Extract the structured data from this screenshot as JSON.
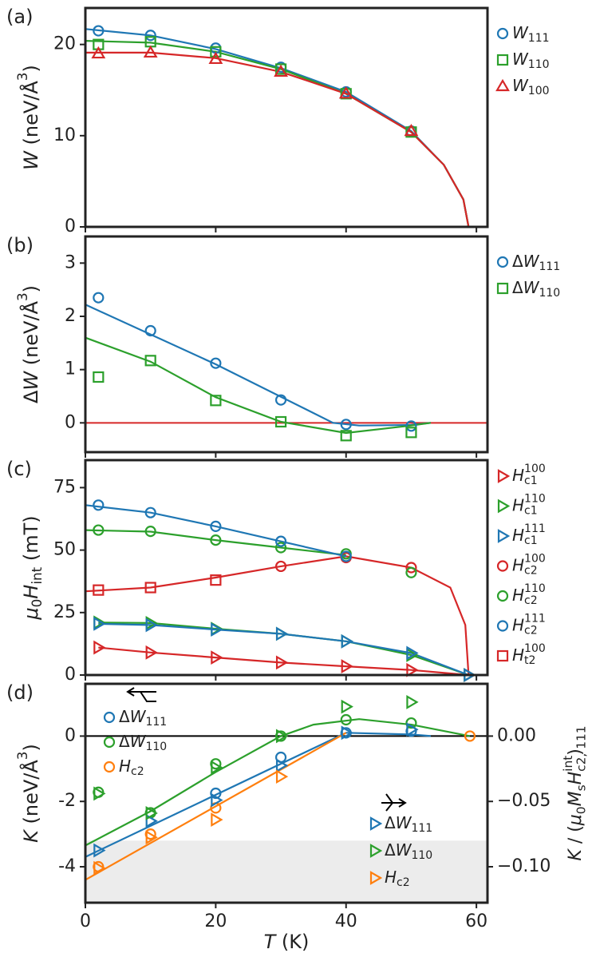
{
  "chart_data": [
    {
      "type": "scatter",
      "label": "(a)",
      "ylabel": [
        {
          "text": "W",
          "style": "i"
        },
        {
          "text": " (neV/Å",
          "style": "n"
        },
        {
          "text": "3",
          "style": "sup"
        },
        {
          "text": ")",
          "style": "n"
        }
      ],
      "xlim": [
        0,
        61.7
      ],
      "xticks": [
        0,
        20,
        40,
        60
      ],
      "ylim": [
        0,
        24
      ],
      "yticks": [
        0,
        10,
        20
      ],
      "series": [
        {
          "name": [
            {
              "text": "W",
              "style": "i"
            },
            {
              "text": "111",
              "style": "sub"
            }
          ],
          "color": "#1f77b4",
          "marker": "circle",
          "x": [
            2,
            10,
            20,
            30,
            40,
            50
          ],
          "values": [
            21.5,
            21.0,
            19.6,
            17.5,
            14.8,
            10.5
          ],
          "fit_x": [
            0,
            10,
            20,
            30,
            40,
            50,
            55,
            58,
            58.8
          ],
          "fit_values": [
            21.7,
            21.0,
            19.5,
            17.4,
            14.8,
            10.5,
            6.8,
            3.0,
            0
          ]
        },
        {
          "name": [
            {
              "text": "W",
              "style": "i"
            },
            {
              "text": "110",
              "style": "sub"
            }
          ],
          "color": "#2ca02c",
          "marker": "square",
          "x": [
            2,
            10,
            20,
            30,
            40,
            50
          ],
          "values": [
            20.0,
            20.3,
            19.2,
            17.3,
            14.6,
            10.4
          ],
          "fit_x": [
            0,
            10,
            20,
            30,
            40,
            50,
            55,
            58,
            58.8
          ],
          "fit_values": [
            20.4,
            20.2,
            19.2,
            17.3,
            14.6,
            10.4,
            6.8,
            3.0,
            0
          ]
        },
        {
          "name": [
            {
              "text": "W",
              "style": "i"
            },
            {
              "text": "100",
              "style": "sub"
            }
          ],
          "color": "#d62728",
          "marker": "triangle-up",
          "x": [
            2,
            10,
            20,
            30,
            40,
            50
          ],
          "values": [
            19.0,
            19.1,
            18.4,
            17.0,
            14.6,
            10.5
          ],
          "fit_x": [
            0,
            10,
            20,
            30,
            40,
            50,
            55,
            58,
            58.8
          ],
          "fit_values": [
            19.1,
            19.1,
            18.5,
            17.0,
            14.6,
            10.4,
            6.8,
            3.0,
            0
          ]
        }
      ]
    },
    {
      "type": "scatter",
      "label": "(b)",
      "ylabel": [
        {
          "text": "Δ",
          "style": "n"
        },
        {
          "text": "W",
          "style": "i"
        },
        {
          "text": " (neV/Å",
          "style": "n"
        },
        {
          "text": "3",
          "style": "sup"
        },
        {
          "text": ")",
          "style": "n"
        }
      ],
      "xlim": [
        0,
        61.7
      ],
      "xticks": [
        0,
        20,
        40,
        60
      ],
      "ylim": [
        -0.55,
        3.5
      ],
      "yticks": [
        0,
        1,
        2,
        3
      ],
      "hline": 0,
      "hline_color": "#d62728",
      "series": [
        {
          "name": [
            {
              "text": "Δ",
              "style": "n"
            },
            {
              "text": "W",
              "style": "i"
            },
            {
              "text": "111",
              "style": "sub"
            }
          ],
          "color": "#1f77b4",
          "marker": "circle",
          "x": [
            2,
            10,
            20,
            30,
            40,
            50
          ],
          "values": [
            2.35,
            1.73,
            1.12,
            0.43,
            -0.03,
            -0.06
          ],
          "fit_x": [
            0,
            20,
            38,
            42,
            50,
            53
          ],
          "fit_values": [
            2.22,
            1.1,
            0,
            -0.05,
            -0.04,
            0
          ]
        },
        {
          "name": [
            {
              "text": "Δ",
              "style": "n"
            },
            {
              "text": "W",
              "style": "i"
            },
            {
              "text": "110",
              "style": "sub"
            }
          ],
          "color": "#2ca02c",
          "marker": "square",
          "x": [
            2,
            10,
            20,
            30,
            40,
            50
          ],
          "values": [
            0.86,
            1.17,
            0.42,
            0.02,
            -0.24,
            -0.18
          ],
          "fit_x": [
            0,
            10,
            20,
            30,
            40,
            50,
            53
          ],
          "fit_values": [
            1.6,
            1.15,
            0.48,
            0.02,
            -0.19,
            -0.05,
            0
          ]
        }
      ]
    },
    {
      "type": "scatter",
      "label": "(c)",
      "ylabel": [
        {
          "text": "μ",
          "style": "i"
        },
        {
          "text": "0",
          "style": "sub"
        },
        {
          "text": "H",
          "style": "i"
        },
        {
          "text": "int",
          "style": "sub"
        },
        {
          "text": " (mT)",
          "style": "n"
        }
      ],
      "xlim": [
        0,
        61.7
      ],
      "xticks": [
        0,
        20,
        40,
        60
      ],
      "ylim": [
        0,
        86
      ],
      "yticks": [
        0,
        25,
        50,
        75
      ],
      "series": [
        {
          "name": [
            {
              "text": "H",
              "style": "i"
            },
            {
              "text": "c1",
              "style": "sub"
            },
            {
              "text": "100",
              "style": "osup"
            }
          ],
          "color": "#d62728",
          "marker": "triangle-right",
          "line": true,
          "x": [
            2,
            10,
            20,
            30,
            40,
            50,
            58.8
          ],
          "values": [
            11,
            9,
            7,
            5,
            3.5,
            2,
            0
          ]
        },
        {
          "name": [
            {
              "text": "H",
              "style": "i"
            },
            {
              "text": "c1",
              "style": "sub"
            },
            {
              "text": "110",
              "style": "osup"
            }
          ],
          "color": "#2ca02c",
          "marker": "triangle-right",
          "line": true,
          "x": [
            2,
            10,
            20,
            30,
            40,
            50,
            58.8
          ],
          "values": [
            21,
            20.8,
            18.5,
            16.5,
            13.5,
            8,
            0
          ]
        },
        {
          "name": [
            {
              "text": "H",
              "style": "i"
            },
            {
              "text": "c1",
              "style": "sub"
            },
            {
              "text": "111",
              "style": "osup"
            }
          ],
          "color": "#1f77b4",
          "marker": "triangle-right",
          "line": true,
          "x": [
            2,
            10,
            20,
            30,
            40,
            50,
            58.8
          ],
          "values": [
            20.5,
            20,
            18.2,
            16.5,
            13.5,
            8.8,
            0
          ]
        },
        {
          "name": [
            {
              "text": "H",
              "style": "i"
            },
            {
              "text": "c2",
              "style": "sub"
            },
            {
              "text": "100",
              "style": "osup"
            }
          ],
          "color": "#d62728",
          "marker": "circle",
          "x": [
            30,
            40,
            50
          ],
          "values": [
            43.5,
            47,
            43
          ],
          "fit_x": [
            0,
            10,
            20,
            30,
            40,
            50,
            56,
            58.3,
            58.8
          ],
          "fit_values": [
            33.5,
            35,
            39,
            43.5,
            47.5,
            43,
            35,
            20,
            0
          ]
        },
        {
          "name": [
            {
              "text": "H",
              "style": "i"
            },
            {
              "text": "c2",
              "style": "sub"
            },
            {
              "text": "110",
              "style": "osup"
            }
          ],
          "color": "#2ca02c",
          "marker": "circle",
          "x": [
            2,
            10,
            20,
            30,
            40,
            50
          ],
          "values": [
            58,
            57.5,
            54,
            51,
            48.5,
            41
          ],
          "fit_x": [
            0,
            10,
            20,
            30,
            40
          ],
          "fit_values": [
            58,
            57.4,
            54,
            51,
            48
          ]
        },
        {
          "name": [
            {
              "text": "H",
              "style": "i"
            },
            {
              "text": "c2",
              "style": "sub"
            },
            {
              "text": "111",
              "style": "osup"
            }
          ],
          "color": "#1f77b4",
          "marker": "circle",
          "x": [
            2,
            10,
            20,
            30,
            40
          ],
          "values": [
            68,
            65,
            59.5,
            53.5,
            47.5
          ],
          "fit_x": [
            0,
            10,
            20,
            30,
            40
          ],
          "fit_values": [
            68,
            65,
            59.5,
            53.5,
            47.5
          ]
        },
        {
          "name": [
            {
              "text": "H",
              "style": "i"
            },
            {
              "text": "t2",
              "style": "sub"
            },
            {
              "text": "100",
              "style": "osup"
            }
          ],
          "color": "#d62728",
          "marker": "square",
          "x": [
            2,
            10,
            20
          ],
          "values": [
            34,
            35,
            38
          ]
        }
      ]
    },
    {
      "type": "scatter",
      "label": "(d)",
      "ylabel": [
        {
          "text": "K",
          "style": "i"
        },
        {
          "text": " (neV/Å",
          "style": "n"
        },
        {
          "text": "3",
          "style": "sup"
        },
        {
          "text": ")",
          "style": "n"
        }
      ],
      "y2label": [
        {
          "text": "K",
          "style": "i"
        },
        {
          "text": " / (",
          "style": "n"
        },
        {
          "text": "μ",
          "style": "i"
        },
        {
          "text": "0",
          "style": "sub"
        },
        {
          "text": "M",
          "style": "i"
        },
        {
          "text": "s",
          "style": "sub"
        },
        {
          "text": "H",
          "style": "i"
        },
        {
          "text": "c2, 111",
          "style": "sub"
        },
        {
          "text": "int",
          "style": "osup"
        },
        {
          "text": ")",
          "style": "n"
        }
      ],
      "xlabel": [
        {
          "text": "T",
          "style": "i"
        },
        {
          "text": " (K)",
          "style": "n"
        }
      ],
      "xlim": [
        0,
        61.7
      ],
      "xticks": [
        0,
        20,
        40,
        60
      ],
      "ylim": [
        -5.1,
        1.6
      ],
      "yticks": [
        -4,
        -2,
        0
      ],
      "y2lim": [
        -0.1275,
        0.04
      ],
      "y2ticks": [
        {
          "value": -0.1,
          "label": "−0.10"
        },
        {
          "value": -0.05,
          "label": "−0.05"
        },
        {
          "value": 0,
          "label": "0.00"
        }
      ],
      "hline": 0,
      "hline_color": "#000000",
      "shade_below": -3.2,
      "shade_color": "#ececec",
      "series": [
        {
          "name": [
            {
              "text": "Δ",
              "style": "n"
            },
            {
              "text": "W",
              "style": "i"
            },
            {
              "text": "111",
              "style": "sub"
            }
          ],
          "color": "#1f77b4",
          "marker": "circle",
          "x": [
            20,
            30,
            40,
            50
          ],
          "values": [
            -1.75,
            -0.65,
            0.1,
            0.15
          ],
          "fit_x": [
            0,
            40,
            50,
            53
          ],
          "fit_values": [
            -3.7,
            0.1,
            0.05,
            0
          ]
        },
        {
          "name": [
            {
              "text": "Δ",
              "style": "n"
            },
            {
              "text": "W",
              "style": "i"
            },
            {
              "text": "110",
              "style": "sub"
            }
          ],
          "color": "#2ca02c",
          "marker": "circle",
          "x": [
            2,
            10,
            20,
            30,
            40,
            50
          ],
          "values": [
            -1.72,
            -2.35,
            -0.85,
            0,
            0.5,
            0.4
          ],
          "fit_x": [
            0,
            10,
            20,
            30,
            35,
            42,
            50,
            59
          ],
          "fit_values": [
            -3.35,
            -2.3,
            -1.1,
            0,
            0.35,
            0.52,
            0.35,
            0
          ]
        },
        {
          "name": [
            {
              "text": "H",
              "style": "i"
            },
            {
              "text": "c2",
              "style": "sub"
            }
          ],
          "color": "#ff7f0e",
          "marker": "circle",
          "x": [
            2,
            10,
            20,
            59
          ],
          "values": [
            -4.0,
            -3.0,
            -2.2,
            0
          ],
          "fit_x": [
            0,
            40
          ],
          "fit_values": [
            -4.4,
            0.1
          ]
        },
        {
          "name": [
            {
              "text": "Δ",
              "style": "n"
            },
            {
              "text": "W",
              "style": "i"
            },
            {
              "text": "111",
              "style": "sub"
            }
          ],
          "color": "#1f77b4",
          "marker": "triangle-right",
          "axis": "y2",
          "x": [
            2,
            10,
            20,
            30,
            40,
            50
          ],
          "values": [
            -0.0875,
            -0.065,
            -0.049,
            -0.0225,
            0.0025,
            0.005
          ]
        },
        {
          "name": [
            {
              "text": "Δ",
              "style": "n"
            },
            {
              "text": "W",
              "style": "i"
            },
            {
              "text": "110",
              "style": "sub"
            }
          ],
          "color": "#2ca02c",
          "marker": "triangle-right",
          "axis": "y2",
          "x": [
            2,
            10,
            20,
            30,
            40,
            50
          ],
          "values": [
            -0.044,
            -0.059,
            -0.024,
            0,
            0.0225,
            0.026
          ]
        },
        {
          "name": [
            {
              "text": "H",
              "style": "i"
            },
            {
              "text": "c2",
              "style": "sub"
            }
          ],
          "color": "#ff7f0e",
          "marker": "triangle-right",
          "axis": "y2",
          "x": [
            2,
            10,
            20,
            30
          ],
          "values": [
            -0.101,
            -0.0775,
            -0.064,
            -0.031
          ]
        }
      ]
    }
  ]
}
